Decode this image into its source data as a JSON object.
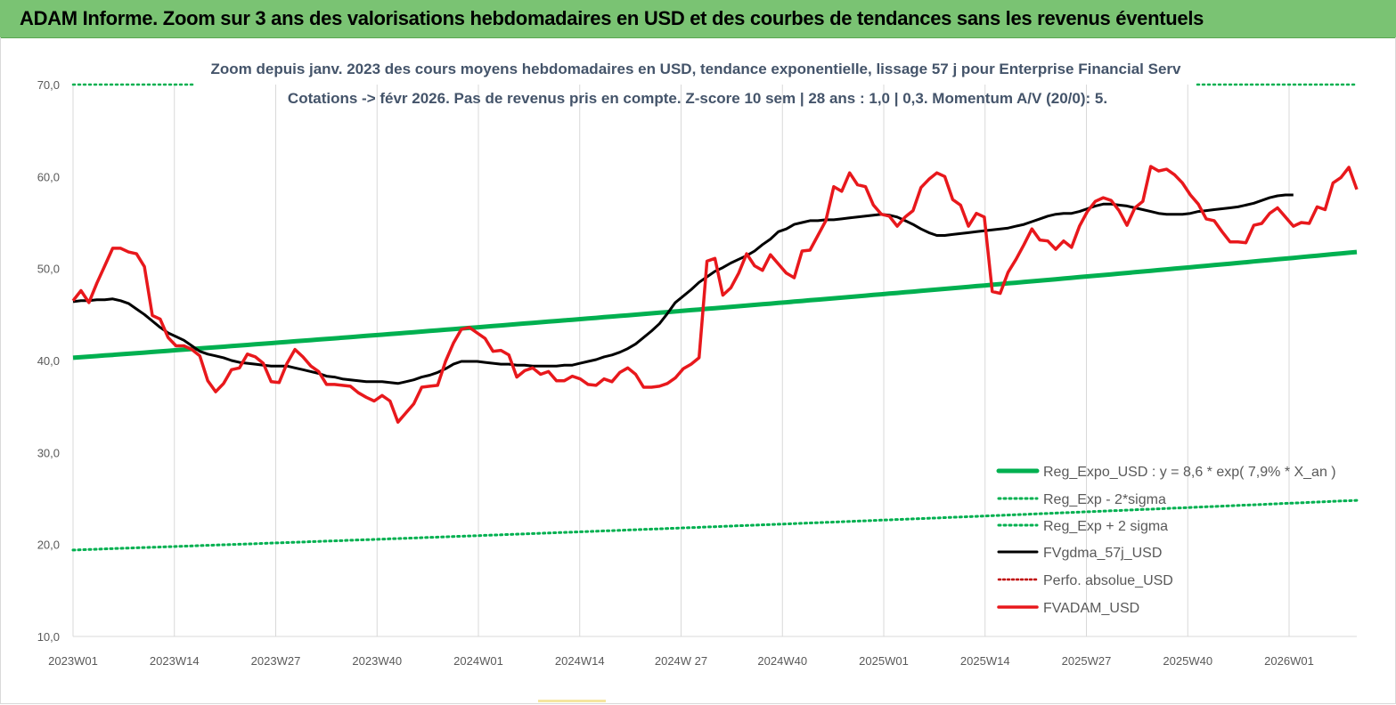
{
  "banner": {
    "title": "ADAM Informe. Zoom sur 3 ans des valorisations hebdomadaires en USD et des courbes de tendances sans les revenus éventuels"
  },
  "colors": {
    "banner": "#7ac373",
    "reg_expo": "#00b050",
    "gdma": "#000000",
    "adam": "#e8181c",
    "perfo": "#c00000",
    "grid": "#d9d9d9"
  },
  "chart_data": {
    "type": "line",
    "title": "Zoom depuis janv. 2023 des cours moyens hebdomadaires en USD, tendance exponentielle, lissage 57 j pour Enterprise Financial Serv",
    "subtitle": "Cotations -> févr 2026. Pas de revenus pris en compte. Z-score 10 sem | 28 ans : 1,0 | 0,3. Momentum A/V (20/0): 5.",
    "xlabel": "",
    "ylabel": "",
    "ylim": [
      10,
      70
    ],
    "yticks": [
      "70,0",
      "60,0",
      "50,0",
      "40,0",
      "30,0",
      "20,0",
      "10,0"
    ],
    "xticks": [
      "2023W01",
      "2023W14",
      "2023W27",
      "2023W40",
      "2024W01",
      "2024W14",
      "2024W 27",
      "2024W40",
      "2025W01",
      "2025W14",
      "2025W27",
      "2025W40",
      "2026W01"
    ],
    "grid": "vertical",
    "legend_position": "bottom-right",
    "series": [
      {
        "name": "Reg_Expo_USD : y = 8,6 * exp( 7,9% *  X_an )",
        "style": "solid-thick",
        "start": 40.3,
        "end": 51.8
      },
      {
        "name": "Reg_Exp - 2*sigma",
        "style": "dotted",
        "start": 19.4,
        "end": 24.8
      },
      {
        "name": "Reg_Exp + 2 sigma",
        "style": "dotted",
        "start": 70.0,
        "end": 70.0
      },
      {
        "name": "FVgdma_57j_USD",
        "style": "solid",
        "values": [
          46.4,
          46.5,
          46.5,
          46.6,
          46.6,
          46.7,
          46.5,
          46.2,
          45.6,
          45.0,
          44.3,
          43.6,
          43.0,
          42.6,
          42.2,
          41.6,
          41.0,
          40.7,
          40.5,
          40.3,
          40.0,
          39.8,
          39.7,
          39.6,
          39.5,
          39.4,
          39.4,
          39.4,
          39.2,
          39.0,
          38.8,
          38.6,
          38.3,
          38.2,
          38.0,
          37.9,
          37.8,
          37.7,
          37.7,
          37.7,
          37.6,
          37.5,
          37.7,
          37.9,
          38.2,
          38.4,
          38.7,
          39.1,
          39.6,
          39.9,
          39.9,
          39.9,
          39.8,
          39.7,
          39.6,
          39.6,
          39.5,
          39.5,
          39.4,
          39.4,
          39.4,
          39.4,
          39.5,
          39.5,
          39.7,
          39.9,
          40.1,
          40.4,
          40.6,
          40.9,
          41.3,
          41.8,
          42.5,
          43.2,
          44.0,
          45.1,
          46.3,
          47.0,
          47.7,
          48.5,
          49.1,
          49.7,
          50.1,
          50.6,
          51.0,
          51.4,
          51.9,
          52.6,
          53.2,
          54.0,
          54.3,
          54.8,
          55.0,
          55.2,
          55.2,
          55.3,
          55.3,
          55.4,
          55.5,
          55.6,
          55.7,
          55.8,
          55.9,
          55.8,
          55.6,
          55.2,
          54.8,
          54.3,
          53.9,
          53.6,
          53.6,
          53.7,
          53.8,
          53.9,
          54.0,
          54.1,
          54.2,
          54.3,
          54.4,
          54.6,
          54.8,
          55.1,
          55.4,
          55.7,
          55.9,
          56.0,
          56.0,
          56.2,
          56.5,
          56.8,
          57.0,
          57.0,
          56.9,
          56.8,
          56.6,
          56.4,
          56.2,
          56.0,
          55.9,
          55.9,
          55.9,
          56.0,
          56.2,
          56.3,
          56.4,
          56.5,
          56.6,
          56.7,
          56.9,
          57.1,
          57.4,
          57.7,
          57.9,
          58.0,
          58.0
        ]
      },
      {
        "name": "Perfo. absolue_USD",
        "style": "dotted",
        "values": []
      },
      {
        "name": "FVADAM_USD",
        "style": "solid-thick",
        "values": [
          46.5,
          47.6,
          46.3,
          48.4,
          50.3,
          52.2,
          52.2,
          51.8,
          51.6,
          50.2,
          44.9,
          44.5,
          42.5,
          41.6,
          41.6,
          41.2,
          40.5,
          37.8,
          36.6,
          37.5,
          39.0,
          39.2,
          40.7,
          40.4,
          39.7,
          37.7,
          37.6,
          39.7,
          41.2,
          40.4,
          39.4,
          38.8,
          37.4,
          37.4,
          37.3,
          37.2,
          36.5,
          36.0,
          35.6,
          36.2,
          35.6,
          33.3,
          34.3,
          35.3,
          37.1,
          37.2,
          37.3,
          39.9,
          41.9,
          43.4,
          43.6,
          43.0,
          42.4,
          41.0,
          41.1,
          40.6,
          38.2,
          38.9,
          39.2,
          38.5,
          38.8,
          37.8,
          37.8,
          38.3,
          38.0,
          37.4,
          37.3,
          38.0,
          37.7,
          38.7,
          39.2,
          38.5,
          37.1,
          37.1,
          37.2,
          37.5,
          38.1,
          39.1,
          39.6,
          40.3,
          50.8,
          51.1,
          47.1,
          47.9,
          49.5,
          51.6,
          50.3,
          49.8,
          51.5,
          50.5,
          49.5,
          49.0,
          51.9,
          52.0,
          53.6,
          55.2,
          58.9,
          58.4,
          60.4,
          59.1,
          58.9,
          56.9,
          55.9,
          55.7,
          54.6,
          55.6,
          56.3,
          58.8,
          59.7,
          60.4,
          60.0,
          57.5,
          56.9,
          54.6,
          56.0,
          55.6,
          47.5,
          47.3,
          49.6,
          51.0,
          52.6,
          54.3,
          53.1,
          53.0,
          52.1,
          53.0,
          52.3,
          54.6,
          56.2,
          57.3,
          57.7,
          57.4,
          56.3,
          54.7,
          56.6,
          57.3,
          61.1,
          60.6,
          60.8,
          60.2,
          59.3,
          58.0,
          57.0,
          55.4,
          55.2,
          54.0,
          52.9,
          52.9,
          52.8,
          54.7,
          54.9,
          56.0,
          56.6,
          55.6,
          54.6,
          55.0,
          54.9,
          56.7,
          56.4,
          59.3,
          59.9,
          61.0,
          58.6
        ]
      }
    ]
  }
}
